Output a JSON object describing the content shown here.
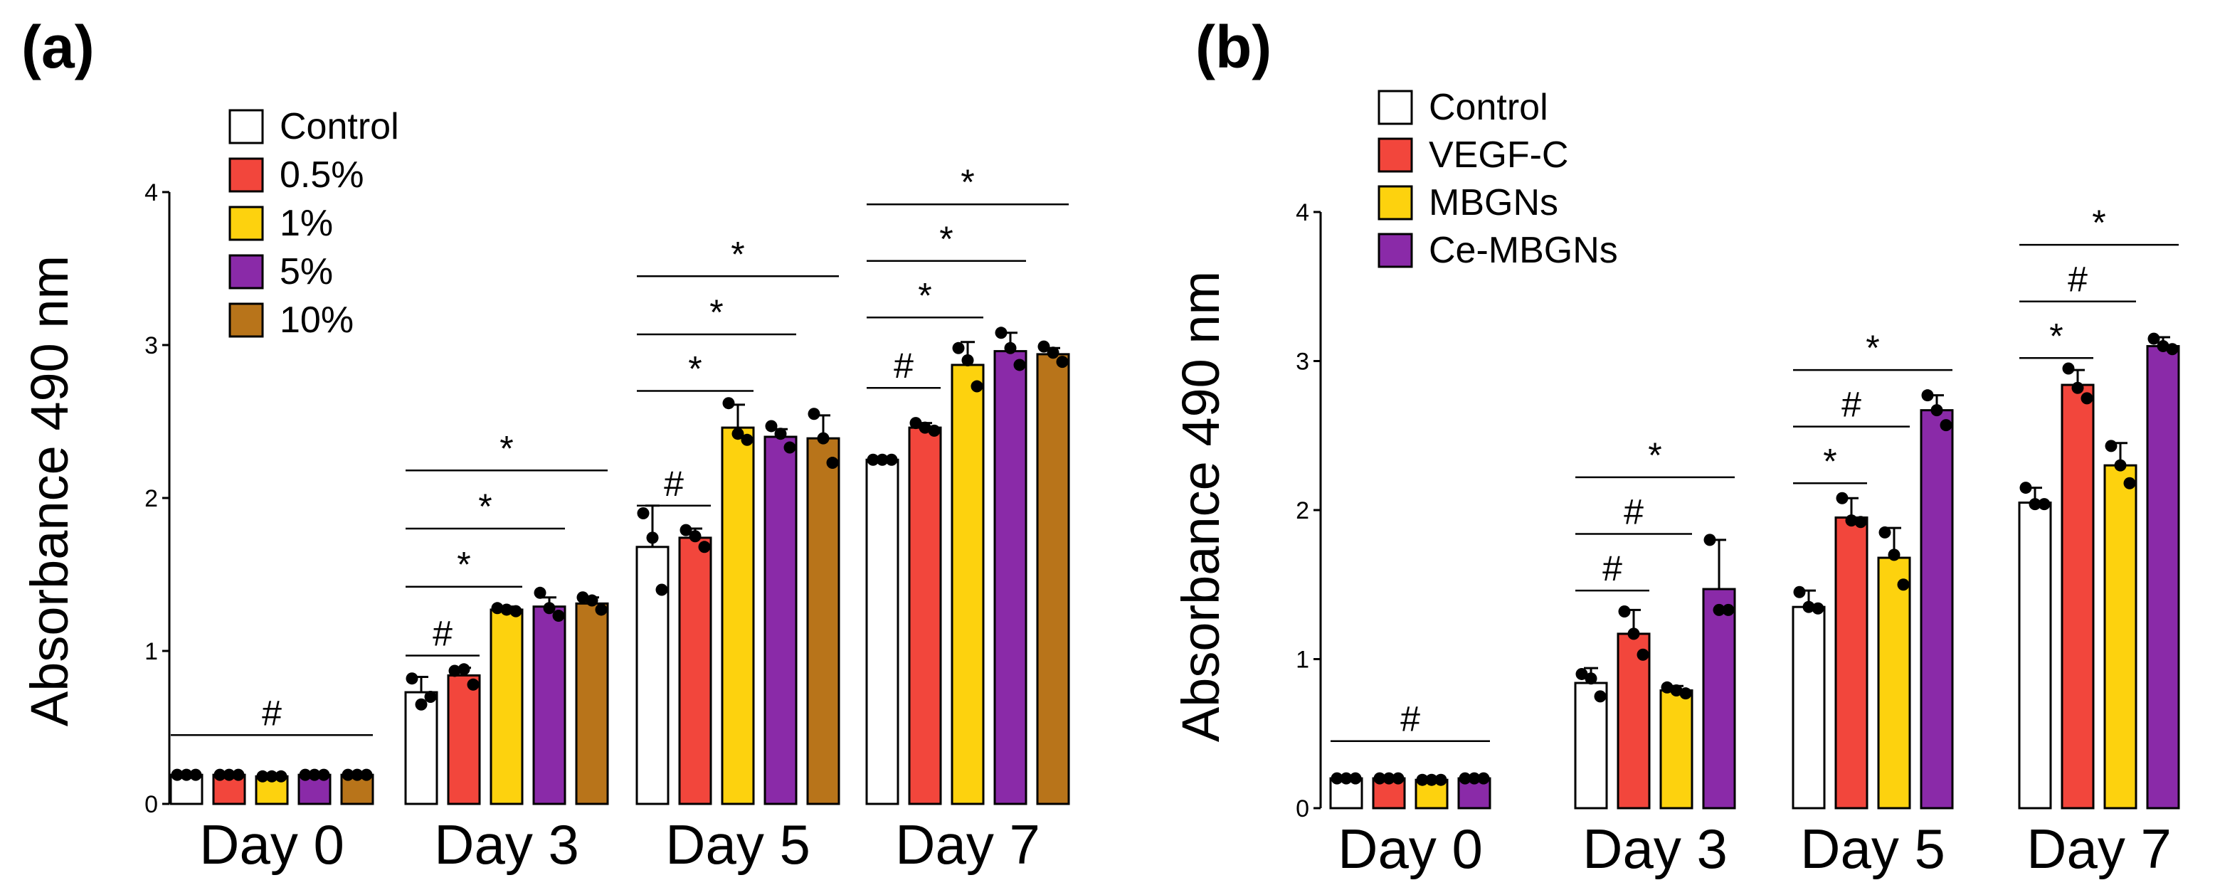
{
  "chart_data": [
    {
      "panel_label": "(a)",
      "type": "bar",
      "ylabel": "Absorbance 490 nm",
      "ylim": [
        0,
        4
      ],
      "yticks": [
        "0",
        "1",
        "2",
        "3",
        "4"
      ],
      "categories": [
        "Day 0",
        "Day 3",
        "Day 5",
        "Day 7"
      ],
      "series": [
        {
          "name": "Control",
          "color": "#ffffff",
          "values": [
            0.19,
            0.73,
            1.68,
            2.25
          ],
          "errors": [
            0.01,
            0.1,
            0.27,
            0.02
          ],
          "points": [
            [
              0.19,
              0.19,
              0.19
            ],
            [
              0.82,
              0.65,
              0.7
            ],
            [
              1.9,
              1.74,
              1.4
            ],
            [
              2.25,
              2.25,
              2.25
            ]
          ]
        },
        {
          "name": "0.5%",
          "color": "#f2463c",
          "values": [
            0.19,
            0.84,
            1.74,
            2.46
          ],
          "errors": [
            0.01,
            0.05,
            0.06,
            0.03
          ],
          "points": [
            [
              0.19,
              0.19,
              0.19
            ],
            [
              0.87,
              0.88,
              0.78
            ],
            [
              1.79,
              1.75,
              1.68
            ],
            [
              2.49,
              2.46,
              2.44
            ]
          ]
        },
        {
          "name": "1%",
          "color": "#fdd20e",
          "values": [
            0.18,
            1.27,
            2.46,
            2.87
          ],
          "errors": [
            0.01,
            0.02,
            0.15,
            0.15
          ],
          "points": [
            [
              0.18,
              0.18,
              0.18
            ],
            [
              1.28,
              1.27,
              1.26
            ],
            [
              2.62,
              2.42,
              2.38
            ],
            [
              2.98,
              2.9,
              2.73
            ]
          ]
        },
        {
          "name": "5%",
          "color": "#8a2aa8",
          "values": [
            0.19,
            1.29,
            2.4,
            2.96
          ],
          "errors": [
            0.01,
            0.06,
            0.05,
            0.12
          ],
          "points": [
            [
              0.19,
              0.19,
              0.19
            ],
            [
              1.38,
              1.28,
              1.23
            ],
            [
              2.47,
              2.42,
              2.33
            ],
            [
              3.08,
              2.98,
              2.87
            ]
          ]
        },
        {
          "name": "10%",
          "color": "#b8741a",
          "values": [
            0.19,
            1.31,
            2.39,
            2.94
          ],
          "errors": [
            0.01,
            0.04,
            0.15,
            0.04
          ],
          "points": [
            [
              0.19,
              0.19,
              0.19
            ],
            [
              1.35,
              1.33,
              1.27
            ],
            [
              2.55,
              2.39,
              2.23
            ],
            [
              2.99,
              2.95,
              2.89
            ]
          ]
        }
      ],
      "significance": [
        {
          "label": "#",
          "category": 0,
          "from": 0,
          "to": 4,
          "y": 0.45
        },
        {
          "label": "#",
          "category": 1,
          "from": 0,
          "to": 1,
          "y": 0.97
        },
        {
          "label": "*",
          "category": 1,
          "from": 0,
          "to": 2,
          "y": 1.42
        },
        {
          "label": "*",
          "category": 1,
          "from": 0,
          "to": 3,
          "y": 1.8
        },
        {
          "label": "*",
          "category": 1,
          "from": 0,
          "to": 4,
          "y": 2.18
        },
        {
          "label": "#",
          "category": 2,
          "from": 0,
          "to": 1,
          "y": 1.95
        },
        {
          "label": "*",
          "category": 2,
          "from": 0,
          "to": 2,
          "y": 2.7
        },
        {
          "label": "*",
          "category": 2,
          "from": 0,
          "to": 3,
          "y": 3.07
        },
        {
          "label": "*",
          "category": 2,
          "from": 0,
          "to": 4,
          "y": 3.45
        },
        {
          "label": "#",
          "category": 3,
          "from": 0,
          "to": 1,
          "y": 2.72
        },
        {
          "label": "*",
          "category": 3,
          "from": 0,
          "to": 2,
          "y": 3.18
        },
        {
          "label": "*",
          "category": 3,
          "from": 0,
          "to": 3,
          "y": 3.55
        },
        {
          "label": "*",
          "category": 3,
          "from": 0,
          "to": 4,
          "y": 3.92
        }
      ]
    },
    {
      "panel_label": "(b)",
      "type": "bar",
      "ylabel": "Absorbance 490 nm",
      "ylim": [
        0,
        4
      ],
      "yticks": [
        "0",
        "1",
        "2",
        "3",
        "4"
      ],
      "categories": [
        "Day 0",
        "Day 3",
        "Day 5",
        "Day 7"
      ],
      "series": [
        {
          "name": "Control",
          "color": "#ffffff",
          "values": [
            0.2,
            0.84,
            1.35,
            2.05
          ],
          "errors": [
            0.01,
            0.1,
            0.11,
            0.1
          ],
          "points": [
            [
              0.2,
              0.2,
              0.2
            ],
            [
              0.9,
              0.87,
              0.75
            ],
            [
              1.45,
              1.35,
              1.34
            ],
            [
              2.15,
              2.04,
              2.04
            ]
          ]
        },
        {
          "name": "VEGF-C",
          "color": "#f2463c",
          "values": [
            0.2,
            1.17,
            1.95,
            2.84
          ],
          "errors": [
            0.01,
            0.16,
            0.13,
            0.1
          ],
          "points": [
            [
              0.2,
              0.2,
              0.2
            ],
            [
              1.32,
              1.17,
              1.03
            ],
            [
              2.08,
              1.93,
              1.92
            ],
            [
              2.95,
              2.82,
              2.75
            ]
          ]
        },
        {
          "name": "MBGNs",
          "color": "#fdd20e",
          "values": [
            0.19,
            0.79,
            1.68,
            2.3
          ],
          "errors": [
            0.01,
            0.03,
            0.2,
            0.15
          ],
          "points": [
            [
              0.19,
              0.19,
              0.19
            ],
            [
              0.81,
              0.79,
              0.77
            ],
            [
              1.85,
              1.7,
              1.5
            ],
            [
              2.43,
              2.3,
              2.18
            ]
          ]
        },
        {
          "name": "Ce-MBGNs",
          "color": "#8a2aa8",
          "values": [
            0.2,
            1.47,
            2.67,
            3.1
          ],
          "errors": [
            0.01,
            0.33,
            0.1,
            0.06
          ],
          "points": [
            [
              0.2,
              0.2,
              0.2
            ],
            [
              1.8,
              1.33,
              1.33
            ],
            [
              2.77,
              2.67,
              2.57
            ],
            [
              3.15,
              3.1,
              3.08
            ]
          ]
        }
      ],
      "significance": [
        {
          "label": "#",
          "category": 0,
          "from": 0,
          "to": 3,
          "y": 0.45
        },
        {
          "label": "#",
          "category": 1,
          "from": 0,
          "to": 1,
          "y": 1.46
        },
        {
          "label": "#",
          "category": 1,
          "from": 0,
          "to": 2,
          "y": 1.84
        },
        {
          "label": "*",
          "category": 1,
          "from": 0,
          "to": 3,
          "y": 2.22
        },
        {
          "label": "*",
          "category": 2,
          "from": 0,
          "to": 1,
          "y": 2.18
        },
        {
          "label": "#",
          "category": 2,
          "from": 0,
          "to": 2,
          "y": 2.56
        },
        {
          "label": "*",
          "category": 2,
          "from": 0,
          "to": 3,
          "y": 2.94
        },
        {
          "label": "*",
          "category": 3,
          "from": 0,
          "to": 1,
          "y": 3.02
        },
        {
          "label": "#",
          "category": 3,
          "from": 0,
          "to": 2,
          "y": 3.4
        },
        {
          "label": "*",
          "category": 3,
          "from": 0,
          "to": 3,
          "y": 3.78
        }
      ]
    }
  ]
}
